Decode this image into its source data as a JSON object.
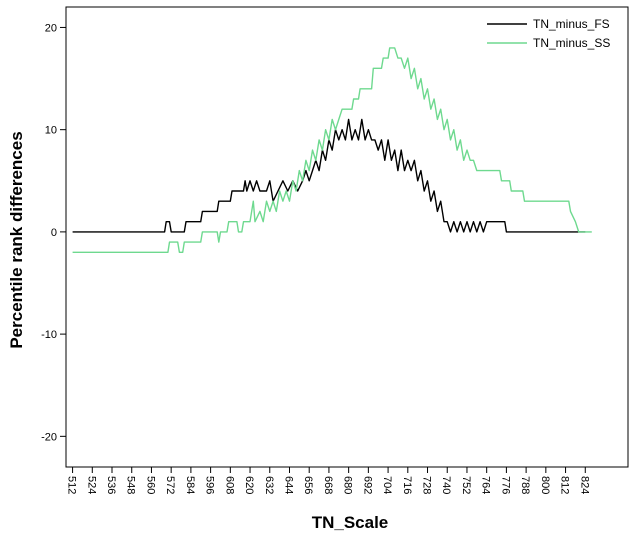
{
  "chart_data": {
    "type": "line",
    "title": "",
    "xlabel": "TN_Scale",
    "ylabel": "Percentile rank differences",
    "xlim": [
      508,
      850
    ],
    "ylim": [
      -23,
      22
    ],
    "x_ticks": [
      512,
      524,
      536,
      548,
      560,
      572,
      584,
      596,
      608,
      620,
      632,
      644,
      656,
      668,
      680,
      692,
      704,
      716,
      728,
      740,
      752,
      764,
      776,
      788,
      800,
      812,
      824
    ],
    "y_ticks": [
      -20,
      -10,
      0,
      10,
      20
    ],
    "grid": false,
    "legend_position": "top-right",
    "series": [
      {
        "name": "TN_minus_FS",
        "color": "#000000",
        "points": [
          [
            512,
            0
          ],
          [
            568,
            0
          ],
          [
            569,
            1
          ],
          [
            571,
            1
          ],
          [
            572,
            0
          ],
          [
            580,
            0
          ],
          [
            581,
            1
          ],
          [
            590,
            1
          ],
          [
            591,
            2
          ],
          [
            600,
            2
          ],
          [
            601,
            3
          ],
          [
            608,
            3
          ],
          [
            609,
            4
          ],
          [
            616,
            4
          ],
          [
            617,
            5
          ],
          [
            618,
            4
          ],
          [
            620,
            5
          ],
          [
            622,
            4
          ],
          [
            624,
            5
          ],
          [
            626,
            4
          ],
          [
            630,
            4
          ],
          [
            632,
            5
          ],
          [
            634,
            3
          ],
          [
            637,
            4
          ],
          [
            640,
            5
          ],
          [
            643,
            4
          ],
          [
            646,
            5
          ],
          [
            649,
            4
          ],
          [
            652,
            5
          ],
          [
            654,
            6
          ],
          [
            656,
            5
          ],
          [
            658,
            6
          ],
          [
            660,
            7
          ],
          [
            662,
            6
          ],
          [
            664,
            8
          ],
          [
            666,
            7
          ],
          [
            668,
            9
          ],
          [
            670,
            8
          ],
          [
            672,
            10
          ],
          [
            674,
            9
          ],
          [
            676,
            10
          ],
          [
            678,
            9
          ],
          [
            680,
            11
          ],
          [
            682,
            9
          ],
          [
            684,
            10
          ],
          [
            686,
            9
          ],
          [
            688,
            11
          ],
          [
            690,
            9
          ],
          [
            692,
            10
          ],
          [
            694,
            9
          ],
          [
            696,
            9
          ],
          [
            698,
            8
          ],
          [
            700,
            9
          ],
          [
            702,
            7
          ],
          [
            704,
            9
          ],
          [
            706,
            7
          ],
          [
            708,
            8
          ],
          [
            710,
            6
          ],
          [
            712,
            8
          ],
          [
            714,
            6
          ],
          [
            716,
            7
          ],
          [
            718,
            6
          ],
          [
            720,
            7
          ],
          [
            722,
            5
          ],
          [
            724,
            6
          ],
          [
            726,
            4
          ],
          [
            728,
            5
          ],
          [
            730,
            3
          ],
          [
            732,
            4
          ],
          [
            734,
            2
          ],
          [
            736,
            3
          ],
          [
            738,
            1
          ],
          [
            740,
            1
          ],
          [
            742,
            0
          ],
          [
            744,
            1
          ],
          [
            746,
            0
          ],
          [
            748,
            1
          ],
          [
            750,
            0
          ],
          [
            752,
            1
          ],
          [
            754,
            0
          ],
          [
            756,
            1
          ],
          [
            758,
            0
          ],
          [
            760,
            1
          ],
          [
            762,
            0
          ],
          [
            764,
            1
          ],
          [
            775,
            1
          ],
          [
            776,
            0
          ],
          [
            824,
            0
          ]
        ]
      },
      {
        "name": "TN_minus_SS",
        "color": "#6ed98f",
        "points": [
          [
            512,
            -2
          ],
          [
            570,
            -2
          ],
          [
            571,
            -1
          ],
          [
            576,
            -1
          ],
          [
            577,
            -2
          ],
          [
            579,
            -2
          ],
          [
            580,
            -1
          ],
          [
            590,
            -1
          ],
          [
            591,
            0
          ],
          [
            600,
            0
          ],
          [
            601,
            -1
          ],
          [
            602,
            0
          ],
          [
            606,
            0
          ],
          [
            607,
            1
          ],
          [
            612,
            1
          ],
          [
            613,
            0
          ],
          [
            615,
            0
          ],
          [
            616,
            1
          ],
          [
            620,
            1
          ],
          [
            622,
            3
          ],
          [
            623,
            1
          ],
          [
            626,
            2
          ],
          [
            628,
            1
          ],
          [
            630,
            3
          ],
          [
            632,
            2
          ],
          [
            634,
            3
          ],
          [
            636,
            2
          ],
          [
            638,
            4
          ],
          [
            640,
            3
          ],
          [
            642,
            4
          ],
          [
            644,
            3
          ],
          [
            646,
            5
          ],
          [
            648,
            4
          ],
          [
            650,
            6
          ],
          [
            652,
            5
          ],
          [
            654,
            7
          ],
          [
            656,
            6
          ],
          [
            658,
            8
          ],
          [
            660,
            7
          ],
          [
            662,
            9
          ],
          [
            664,
            8
          ],
          [
            666,
            10
          ],
          [
            668,
            9
          ],
          [
            670,
            11
          ],
          [
            672,
            10
          ],
          [
            674,
            11
          ],
          [
            676,
            12
          ],
          [
            682,
            12
          ],
          [
            683,
            13
          ],
          [
            686,
            13
          ],
          [
            687,
            14
          ],
          [
            694,
            14
          ],
          [
            695,
            16
          ],
          [
            700,
            16
          ],
          [
            701,
            17
          ],
          [
            704,
            17
          ],
          [
            705,
            18
          ],
          [
            708,
            18
          ],
          [
            710,
            17
          ],
          [
            712,
            17
          ],
          [
            714,
            16
          ],
          [
            716,
            17
          ],
          [
            718,
            15
          ],
          [
            720,
            16
          ],
          [
            722,
            14
          ],
          [
            724,
            15
          ],
          [
            726,
            13
          ],
          [
            728,
            14
          ],
          [
            730,
            12
          ],
          [
            732,
            13
          ],
          [
            734,
            11
          ],
          [
            736,
            12
          ],
          [
            738,
            10
          ],
          [
            740,
            11
          ],
          [
            742,
            9
          ],
          [
            744,
            10
          ],
          [
            746,
            8
          ],
          [
            748,
            9
          ],
          [
            750,
            7
          ],
          [
            752,
            8
          ],
          [
            754,
            7
          ],
          [
            756,
            7
          ],
          [
            758,
            6
          ],
          [
            772,
            6
          ],
          [
            773,
            5
          ],
          [
            778,
            5
          ],
          [
            779,
            4
          ],
          [
            786,
            4
          ],
          [
            787,
            3
          ],
          [
            814,
            3
          ],
          [
            815,
            2
          ],
          [
            818,
            1
          ],
          [
            820,
            0
          ],
          [
            828,
            0
          ]
        ]
      }
    ]
  }
}
